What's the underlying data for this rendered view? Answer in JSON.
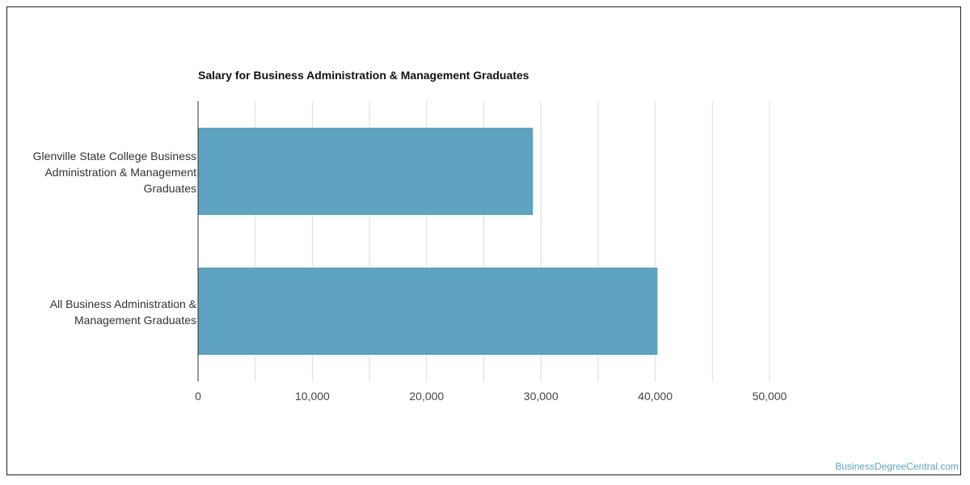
{
  "chart_data": {
    "type": "bar",
    "orientation": "horizontal",
    "title": "Salary for Business Administration & Management Graduates",
    "categories": [
      "Glenville State College Business Administration & Management Graduates",
      "All Business Administration & Management Graduates"
    ],
    "values": [
      29300,
      40200
    ],
    "xlabel": "",
    "ylabel": "",
    "xlim": [
      0,
      50000
    ],
    "ticks": [
      0,
      10000,
      20000,
      30000,
      40000,
      50000
    ],
    "tick_labels": [
      "0",
      "10,000",
      "20,000",
      "30,000",
      "40,000",
      "50,000"
    ],
    "grid": true,
    "bar_color": "#5ea3bf",
    "grid_color": "#dddddd"
  },
  "watermark": "BusinessDegreeCentral.com"
}
